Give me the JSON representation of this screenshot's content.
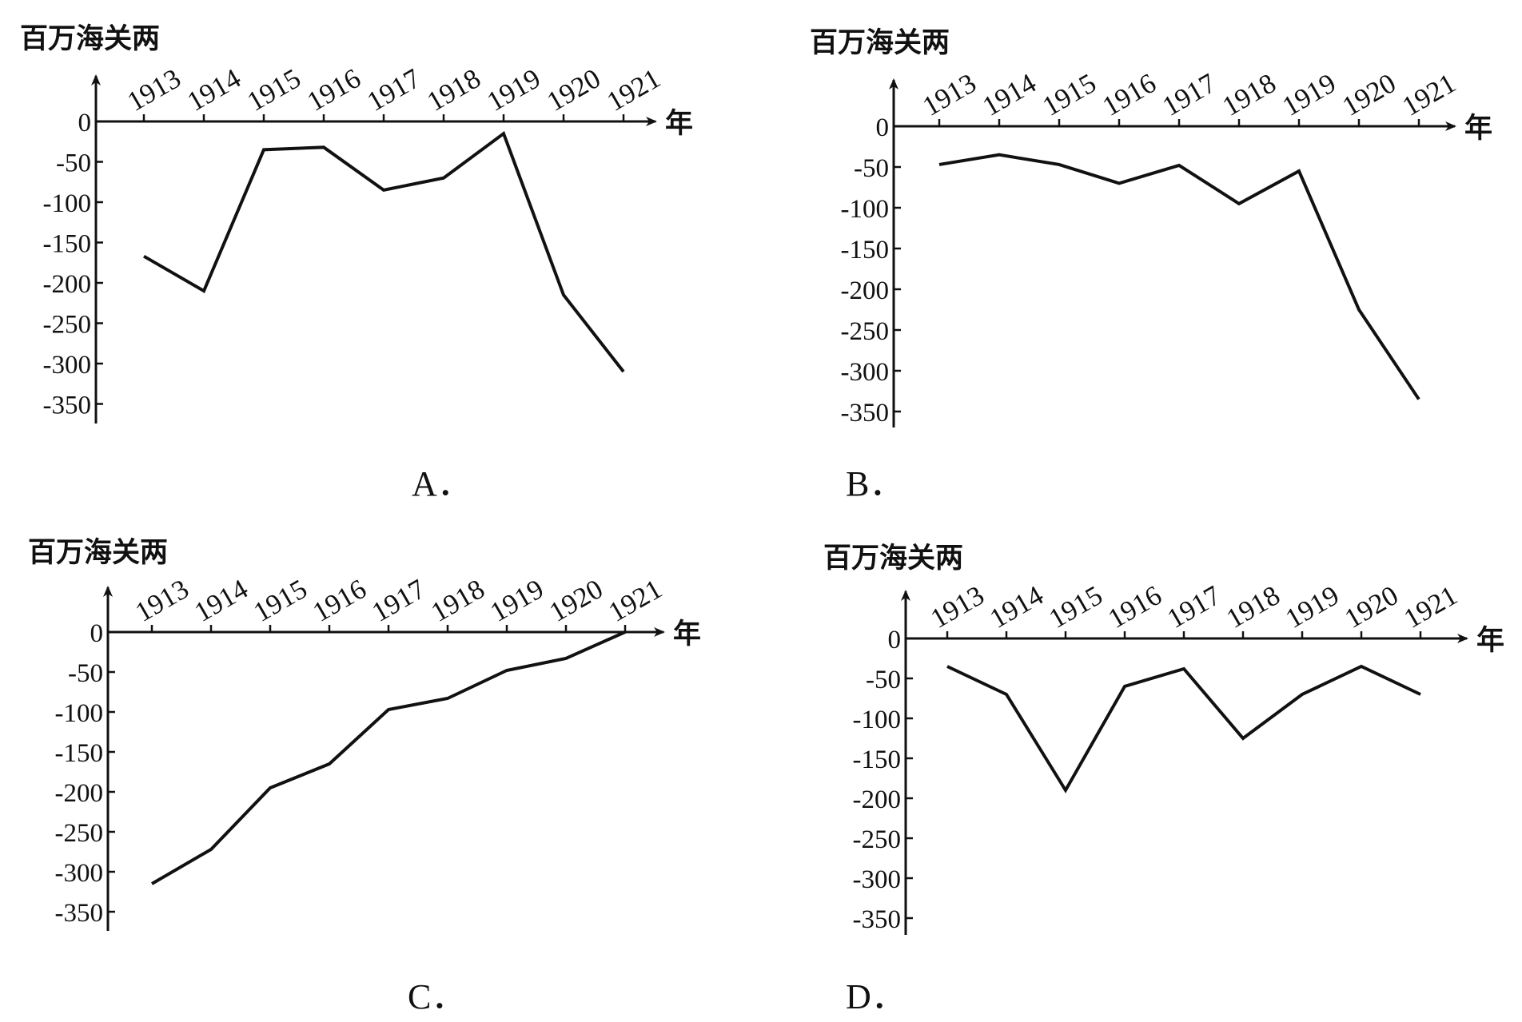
{
  "chart_data": [
    {
      "type": "line",
      "option_label": "A．",
      "unit_label": "百万海关两",
      "x_unit_label": "年",
      "categories": [
        "1913",
        "1914",
        "1915",
        "1916",
        "1917",
        "1918",
        "1919",
        "1920",
        "1921"
      ],
      "values": [
        -167,
        -210,
        -35,
        -32,
        -85,
        -70,
        -15,
        -215,
        -310
      ],
      "y_ticks": [
        "0",
        "-50",
        "-100",
        "-150",
        "-200",
        "-250",
        "-300",
        "-350"
      ],
      "ylim": [
        -350,
        0
      ],
      "grid": false,
      "legend": "none"
    },
    {
      "type": "line",
      "option_label": "B．",
      "unit_label": "百万海关两",
      "x_unit_label": "年",
      "categories": [
        "1913",
        "1914",
        "1915",
        "1916",
        "1917",
        "1918",
        "1919",
        "1920",
        "1921"
      ],
      "values": [
        -47,
        -35,
        -47,
        -70,
        -48,
        -95,
        -55,
        -225,
        -335
      ],
      "y_ticks": [
        "0",
        "-50",
        "-100",
        "-150",
        "-200",
        "-250",
        "-300",
        "-350"
      ],
      "ylim": [
        -350,
        0
      ],
      "grid": false,
      "legend": "none"
    },
    {
      "type": "line",
      "option_label": "C．",
      "unit_label": "百万海关两",
      "x_unit_label": "年",
      "categories": [
        "1913",
        "1914",
        "1915",
        "1916",
        "1917",
        "1918",
        "1919",
        "1920",
        "1921"
      ],
      "values": [
        -315,
        -272,
        -195,
        -165,
        -97,
        -83,
        -48,
        -33,
        0
      ],
      "y_ticks": [
        "0",
        "-50",
        "-100",
        "-150",
        "-200",
        "-250",
        "-300",
        "-350"
      ],
      "ylim": [
        -350,
        0
      ],
      "grid": false,
      "legend": "none"
    },
    {
      "type": "line",
      "option_label": "D．",
      "unit_label": "百万海关两",
      "x_unit_label": "年",
      "categories": [
        "1913",
        "1914",
        "1915",
        "1916",
        "1917",
        "1918",
        "1919",
        "1920",
        "1921"
      ],
      "values": [
        -35,
        -70,
        -190,
        -60,
        -38,
        -125,
        -70,
        -35,
        -70
      ],
      "y_ticks": [
        "0",
        "-50",
        "-100",
        "-150",
        "-200",
        "-250",
        "-300",
        "-350"
      ],
      "ylim": [
        -350,
        0
      ],
      "grid": false,
      "legend": "none"
    }
  ]
}
